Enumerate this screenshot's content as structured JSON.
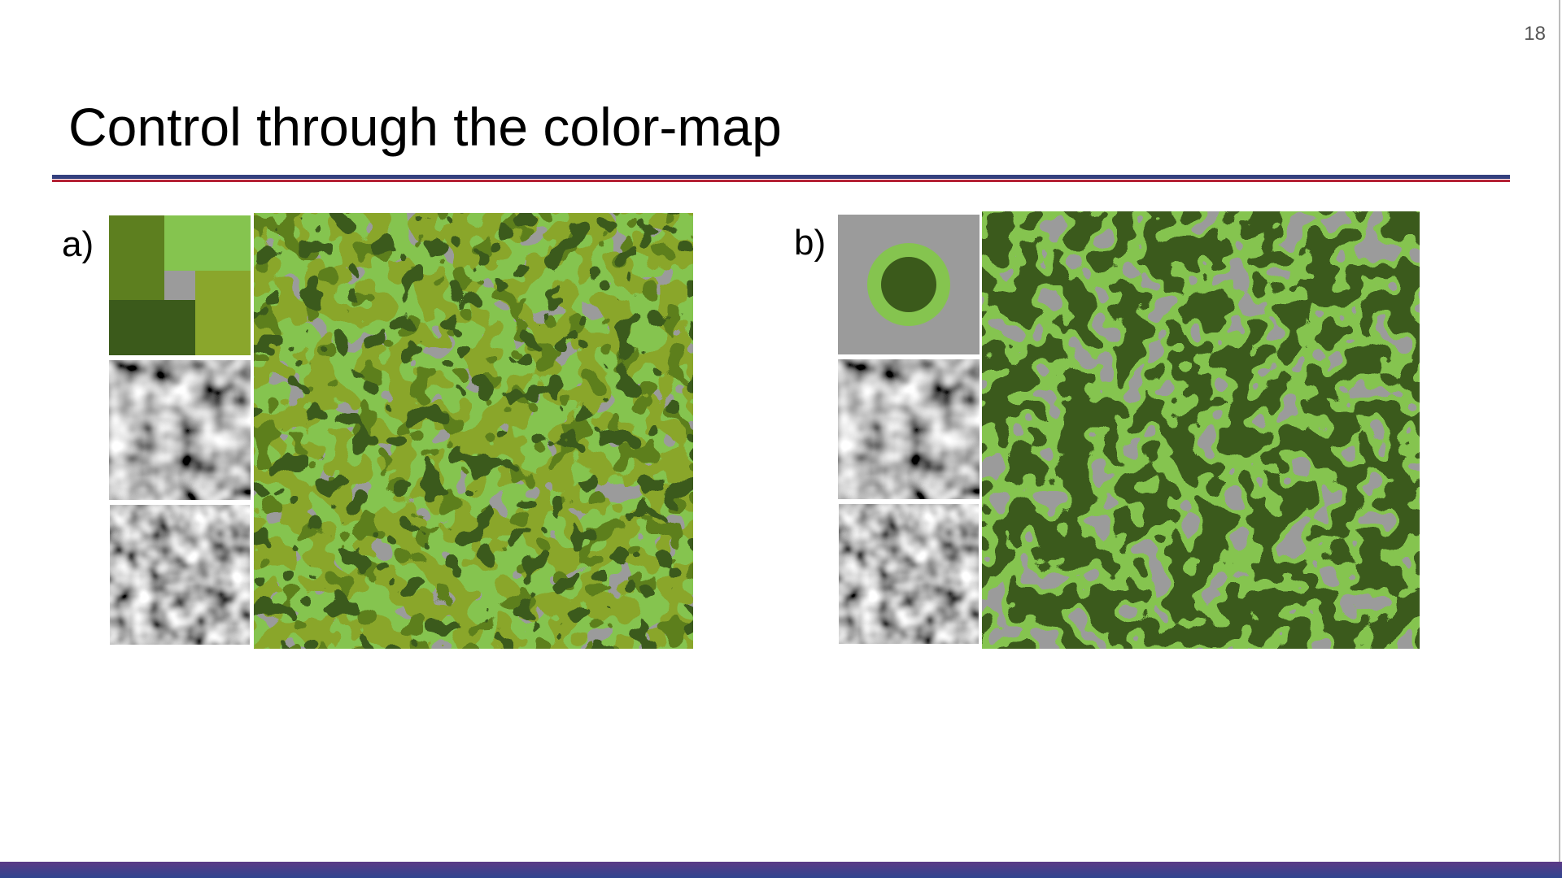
{
  "slide": {
    "title": "Control through the color-map",
    "page_number": "18"
  },
  "colors": {
    "gray": "#9b9b9b",
    "light_green": "#85c44f",
    "olive_green": "#8aa62c",
    "mid_green": "#5d7f1f",
    "dark_green": "#3b5a1b",
    "rule_blue": "#34407e",
    "rule_red": "#b42135",
    "footer_purple": "#5b3a86"
  },
  "panels": [
    {
      "label": "a)"
    },
    {
      "label": "b)"
    }
  ]
}
